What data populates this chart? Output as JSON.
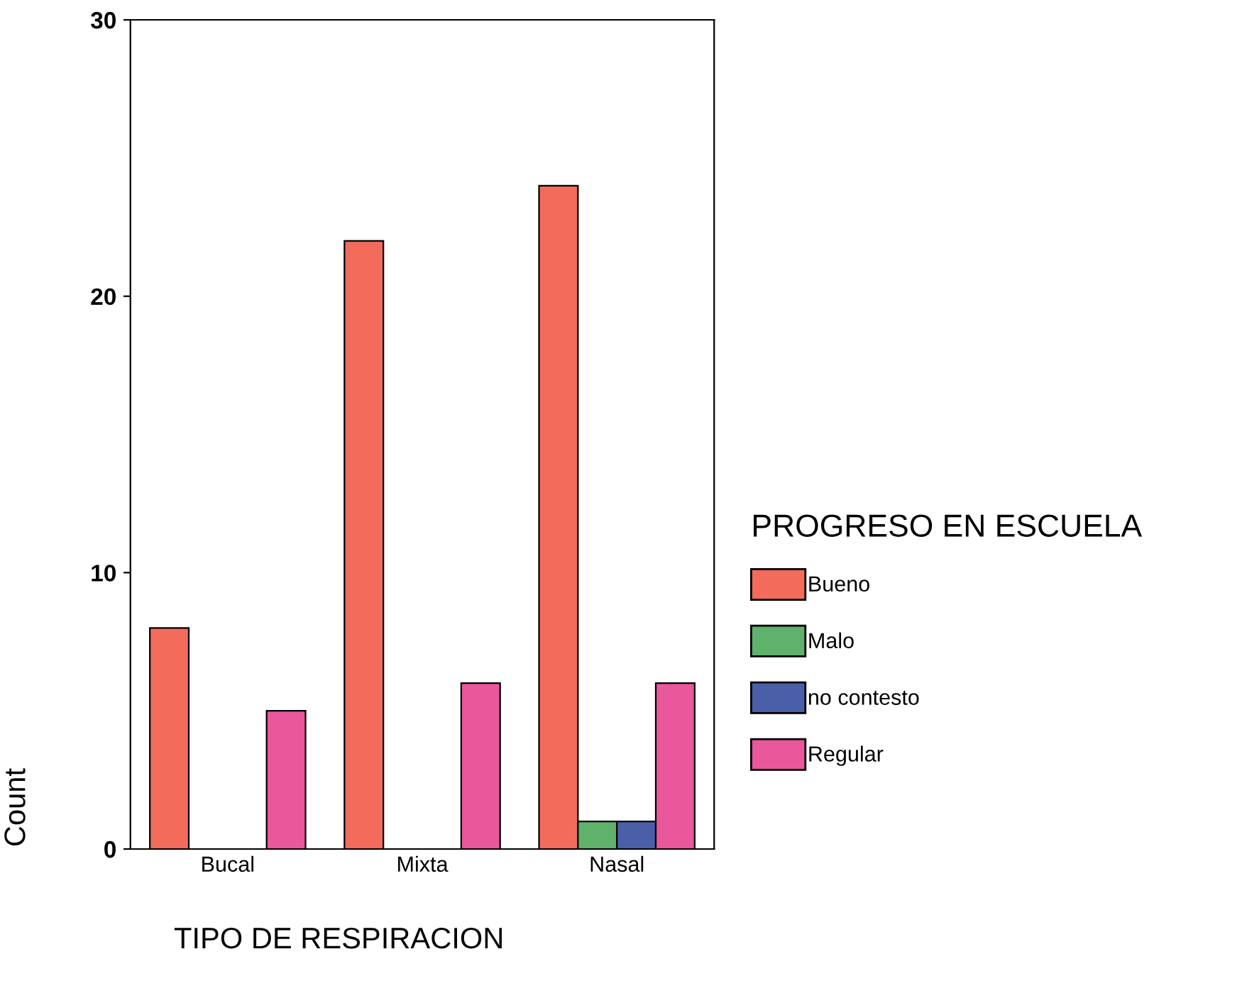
{
  "chart_data": {
    "type": "bar",
    "xlabel": "TIPO DE RESPIRACION",
    "ylabel": "Count",
    "legend_title": "PROGRESO EN ESCUELA",
    "categories": [
      "Bucal",
      "Mixta",
      "Nasal"
    ],
    "series": [
      {
        "name": "Bueno",
        "color": "#f26b5b",
        "values": [
          8,
          22,
          24
        ]
      },
      {
        "name": "Malo",
        "color": "#5fb16b",
        "values": [
          0,
          0,
          1
        ]
      },
      {
        "name": "no contesto",
        "color": "#4b5ea8",
        "values": [
          0,
          0,
          1
        ]
      },
      {
        "name": "Regular",
        "color": "#e8589a",
        "values": [
          5,
          6,
          6
        ]
      }
    ],
    "ylim": [
      0,
      30
    ],
    "yticks": [
      0,
      10,
      20,
      30
    ],
    "grid": false,
    "legend": "right"
  }
}
